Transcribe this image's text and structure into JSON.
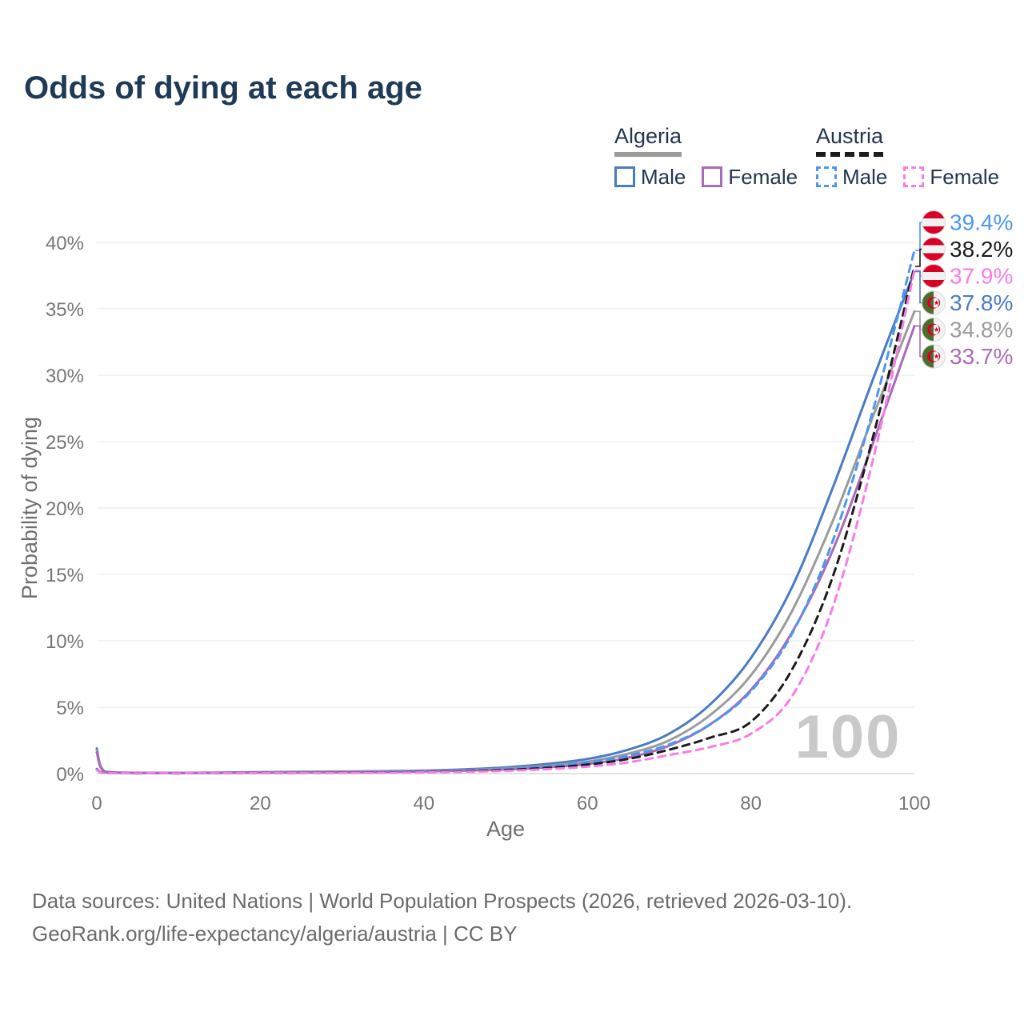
{
  "title": "Odds of dying at each age",
  "watermark": "100",
  "legend": {
    "groups": [
      {
        "country": "Algeria",
        "underline_style": "solid",
        "underline_color": "#9b9b9b",
        "items": [
          {
            "label": "Male",
            "color": "#4a7bc4",
            "style": "solid"
          },
          {
            "label": "Female",
            "color": "#aa6bb8",
            "style": "solid"
          }
        ]
      },
      {
        "country": "Austria",
        "underline_style": "dashed",
        "underline_color": "#1c1c1c",
        "items": [
          {
            "label": "Male",
            "color": "#4a97f2",
            "style": "dashed"
          },
          {
            "label": "Female",
            "color": "#f97ce5",
            "style": "dashed"
          }
        ]
      }
    ]
  },
  "footer": {
    "line1": "Data sources: United Nations | World Population Prospects (2026, retrieved 2026-03-10).",
    "line2": "GeoRank.org/life-expectancy/algeria/austria | CC BY"
  },
  "chart_data": {
    "type": "line",
    "title": "Odds of dying at each age",
    "xlabel": "Age",
    "ylabel": "Probability of dying",
    "xlim": [
      0,
      100
    ],
    "ylim": [
      0,
      40
    ],
    "x_ticks": [
      0,
      20,
      40,
      60,
      80,
      100
    ],
    "y_ticks": [
      0,
      5,
      10,
      15,
      20,
      25,
      30,
      35,
      40
    ],
    "grid": "horizontal-only",
    "legend_position": "top-right",
    "x": [
      0,
      1,
      5,
      10,
      15,
      20,
      25,
      30,
      35,
      40,
      45,
      50,
      55,
      60,
      65,
      70,
      75,
      80,
      85,
      90,
      95,
      100
    ],
    "series": [
      {
        "name": "Algeria Male",
        "country": "Algeria",
        "flag": "algeria",
        "color": "#4a7bc4",
        "style": "solid",
        "end_label": "37.8%",
        "values": [
          1.9,
          0.15,
          0.06,
          0.05,
          0.08,
          0.11,
          0.13,
          0.15,
          0.18,
          0.23,
          0.32,
          0.47,
          0.72,
          1.1,
          1.8,
          3.0,
          5.2,
          8.7,
          14.0,
          21.5,
          29.8,
          37.8
        ]
      },
      {
        "name": "Algeria",
        "country": "Algeria",
        "flag": "algeria",
        "color": "#9b9b9b",
        "style": "solid",
        "end_label": "34.8%",
        "values": [
          1.75,
          0.13,
          0.05,
          0.04,
          0.06,
          0.09,
          0.11,
          0.13,
          0.15,
          0.19,
          0.26,
          0.38,
          0.58,
          0.9,
          1.5,
          2.5,
          4.4,
          7.4,
          12.2,
          19.0,
          27.0,
          34.8
        ]
      },
      {
        "name": "Algeria Female",
        "country": "Algeria",
        "flag": "algeria",
        "color": "#aa6bb8",
        "style": "solid",
        "end_label": "33.7%",
        "values": [
          1.6,
          0.12,
          0.05,
          0.04,
          0.05,
          0.07,
          0.08,
          0.1,
          0.12,
          0.16,
          0.22,
          0.31,
          0.47,
          0.72,
          1.2,
          2.1,
          3.7,
          6.3,
          10.6,
          16.8,
          25.0,
          33.7
        ]
      },
      {
        "name": "Austria Male",
        "country": "Austria",
        "flag": "austria",
        "color": "#4a97f2",
        "style": "dashed",
        "end_label": "39.4%",
        "values": [
          0.35,
          0.03,
          0.01,
          0.01,
          0.03,
          0.06,
          0.07,
          0.08,
          0.1,
          0.14,
          0.21,
          0.33,
          0.53,
          0.85,
          1.35,
          2.2,
          3.7,
          6.2,
          10.5,
          17.5,
          27.5,
          39.4
        ]
      },
      {
        "name": "Austria",
        "country": "Austria",
        "flag": "austria",
        "color": "#1c1c1c",
        "style": "dashed",
        "end_label": "38.2%",
        "values": [
          0.3,
          0.03,
          0.01,
          0.01,
          0.02,
          0.04,
          0.05,
          0.06,
          0.08,
          0.11,
          0.17,
          0.27,
          0.43,
          0.68,
          1.1,
          1.8,
          2.7,
          3.9,
          7.8,
          14.8,
          25.5,
          38.2
        ]
      },
      {
        "name": "Austria Female",
        "country": "Austria",
        "flag": "austria",
        "color": "#f97ce5",
        "style": "dashed",
        "end_label": "37.9%",
        "values": [
          0.28,
          0.02,
          0.01,
          0.01,
          0.02,
          0.03,
          0.04,
          0.05,
          0.06,
          0.09,
          0.13,
          0.21,
          0.33,
          0.52,
          0.85,
          1.4,
          2.0,
          3.0,
          5.8,
          12.5,
          23.8,
          37.9
        ]
      }
    ]
  }
}
